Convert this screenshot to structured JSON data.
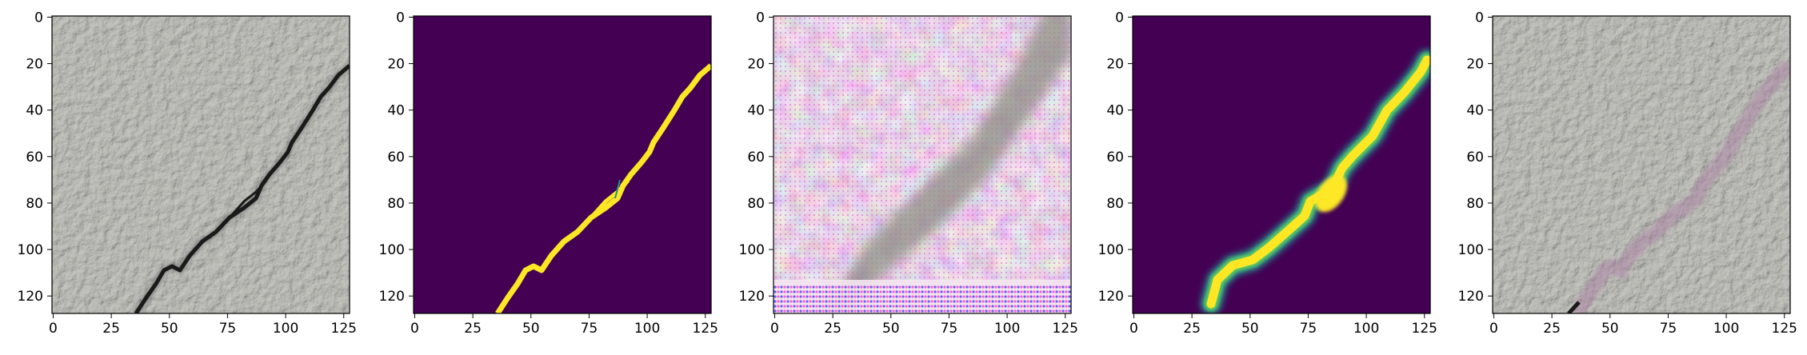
{
  "figure": {
    "panels": [
      {
        "kind": "crack-photo",
        "description": "grayscale concrete texture with dark crack"
      },
      {
        "kind": "mask",
        "description": "binary crack mask, yellow on purple"
      },
      {
        "kind": "generated-image",
        "description": "noisy pink/gray generated texture with diagonal gray band"
      },
      {
        "kind": "probability-map",
        "description": "soft crack prediction, yellow-green on purple"
      },
      {
        "kind": "overlay",
        "description": "concrete texture with faint pink crack overlay"
      }
    ],
    "x_ticks": [
      "0",
      "25",
      "50",
      "75",
      "100",
      "125"
    ],
    "y_ticks": [
      "0",
      "20",
      "40",
      "60",
      "80",
      "100",
      "120"
    ],
    "colors": {
      "viridis_dark": "#440154",
      "viridis_yellow": "#fde725",
      "viridis_teal": "#21918c",
      "viridis_green": "#5ec962",
      "concrete": "#b5b5b0",
      "crack": "#1a1a1a",
      "pink": "#e8b7dc"
    }
  }
}
